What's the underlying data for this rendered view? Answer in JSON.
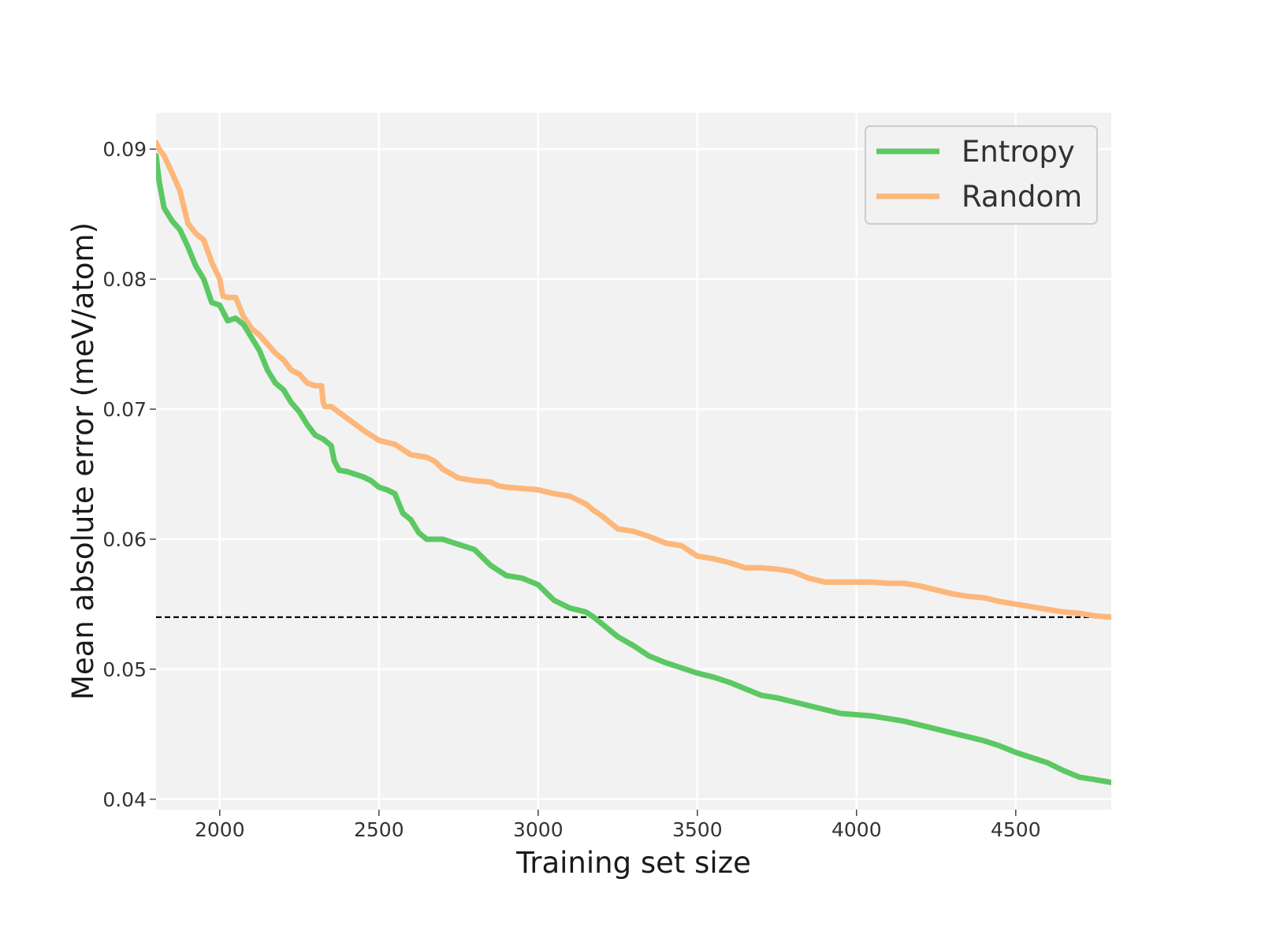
{
  "chart_data": {
    "type": "line",
    "title": "",
    "xlabel": "Training set size",
    "ylabel": "Mean absolute error (meV/atom)",
    "xlim": [
      1800,
      4800
    ],
    "ylim": [
      0.0392,
      0.0928
    ],
    "xticks": [
      2000,
      2500,
      3000,
      3500,
      4000,
      4500
    ],
    "xtick_labels": [
      "2000",
      "2500",
      "3000",
      "3500",
      "4000",
      "4500"
    ],
    "yticks": [
      0.04,
      0.05,
      0.06,
      0.07,
      0.08,
      0.09
    ],
    "ytick_labels": [
      "0.04",
      "0.05",
      "0.06",
      "0.07",
      "0.08",
      "0.09"
    ],
    "grid": true,
    "legend_position": "top-right",
    "reference_line": {
      "y": 0.054,
      "style": "dashed",
      "color": "#000000"
    },
    "series": [
      {
        "name": "Entropy",
        "color": "#5cc863",
        "x": [
          1800,
          1810,
          1825,
          1850,
          1875,
          1900,
          1925,
          1950,
          1975,
          2000,
          2025,
          2050,
          2075,
          2100,
          2125,
          2150,
          2175,
          2200,
          2225,
          2250,
          2275,
          2300,
          2325,
          2350,
          2360,
          2375,
          2400,
          2425,
          2450,
          2475,
          2500,
          2525,
          2550,
          2575,
          2600,
          2625,
          2650,
          2700,
          2750,
          2800,
          2850,
          2900,
          2950,
          3000,
          3050,
          3100,
          3150,
          3175,
          3200,
          3250,
          3300,
          3350,
          3400,
          3450,
          3500,
          3550,
          3600,
          3650,
          3700,
          3750,
          3800,
          3850,
          3900,
          3950,
          4000,
          4050,
          4100,
          4150,
          4200,
          4250,
          4300,
          4350,
          4400,
          4450,
          4500,
          4550,
          4600,
          4650,
          4700,
          4750,
          4800
        ],
        "values": [
          0.0895,
          0.0875,
          0.0855,
          0.0845,
          0.0838,
          0.0825,
          0.081,
          0.08,
          0.0782,
          0.078,
          0.0768,
          0.077,
          0.0765,
          0.0755,
          0.0745,
          0.073,
          0.072,
          0.0715,
          0.0705,
          0.0698,
          0.0688,
          0.068,
          0.0677,
          0.0672,
          0.066,
          0.0653,
          0.0652,
          0.065,
          0.0648,
          0.0645,
          0.064,
          0.0638,
          0.0635,
          0.062,
          0.0615,
          0.0605,
          0.06,
          0.06,
          0.0596,
          0.0592,
          0.058,
          0.0572,
          0.057,
          0.0565,
          0.0553,
          0.0547,
          0.0544,
          0.054,
          0.0535,
          0.0525,
          0.0518,
          0.051,
          0.0505,
          0.0501,
          0.0497,
          0.0494,
          0.049,
          0.0485,
          0.048,
          0.0478,
          0.0475,
          0.0472,
          0.0469,
          0.0466,
          0.0465,
          0.0464,
          0.0462,
          0.046,
          0.0457,
          0.0454,
          0.0451,
          0.0448,
          0.0445,
          0.0441,
          0.0436,
          0.0432,
          0.0428,
          0.0422,
          0.0417,
          0.0415,
          0.0413
        ]
      },
      {
        "name": "Random",
        "color": "#fdb77a",
        "x": [
          1800,
          1810,
          1825,
          1850,
          1875,
          1900,
          1925,
          1950,
          1975,
          2000,
          2010,
          2025,
          2050,
          2075,
          2100,
          2125,
          2150,
          2175,
          2200,
          2225,
          2250,
          2275,
          2300,
          2320,
          2325,
          2330,
          2350,
          2400,
          2450,
          2500,
          2550,
          2600,
          2650,
          2675,
          2700,
          2750,
          2800,
          2850,
          2875,
          2900,
          2950,
          3000,
          3050,
          3100,
          3150,
          3175,
          3200,
          3250,
          3300,
          3350,
          3400,
          3450,
          3500,
          3550,
          3600,
          3650,
          3700,
          3750,
          3800,
          3850,
          3900,
          3950,
          4000,
          4050,
          4100,
          4150,
          4200,
          4250,
          4300,
          4350,
          4400,
          4450,
          4500,
          4550,
          4600,
          4650,
          4700,
          4750,
          4800
        ],
        "values": [
          0.0905,
          0.09,
          0.0895,
          0.0882,
          0.0868,
          0.0843,
          0.0835,
          0.083,
          0.0813,
          0.08,
          0.0787,
          0.0786,
          0.0786,
          0.0771,
          0.0762,
          0.0757,
          0.075,
          0.0743,
          0.0738,
          0.073,
          0.0727,
          0.072,
          0.0718,
          0.0718,
          0.0705,
          0.0702,
          0.0702,
          0.0693,
          0.0684,
          0.0676,
          0.0673,
          0.0665,
          0.0663,
          0.066,
          0.0654,
          0.0647,
          0.0645,
          0.0644,
          0.0641,
          0.064,
          0.0639,
          0.0638,
          0.0635,
          0.0633,
          0.0627,
          0.0622,
          0.0618,
          0.0608,
          0.0606,
          0.0602,
          0.0597,
          0.0595,
          0.0587,
          0.0585,
          0.0582,
          0.0578,
          0.0578,
          0.0577,
          0.0575,
          0.057,
          0.0567,
          0.0567,
          0.0567,
          0.0567,
          0.0566,
          0.0566,
          0.0564,
          0.0561,
          0.0558,
          0.0556,
          0.0555,
          0.0552,
          0.055,
          0.0548,
          0.0546,
          0.0544,
          0.0543,
          0.0541,
          0.054
        ]
      }
    ]
  }
}
